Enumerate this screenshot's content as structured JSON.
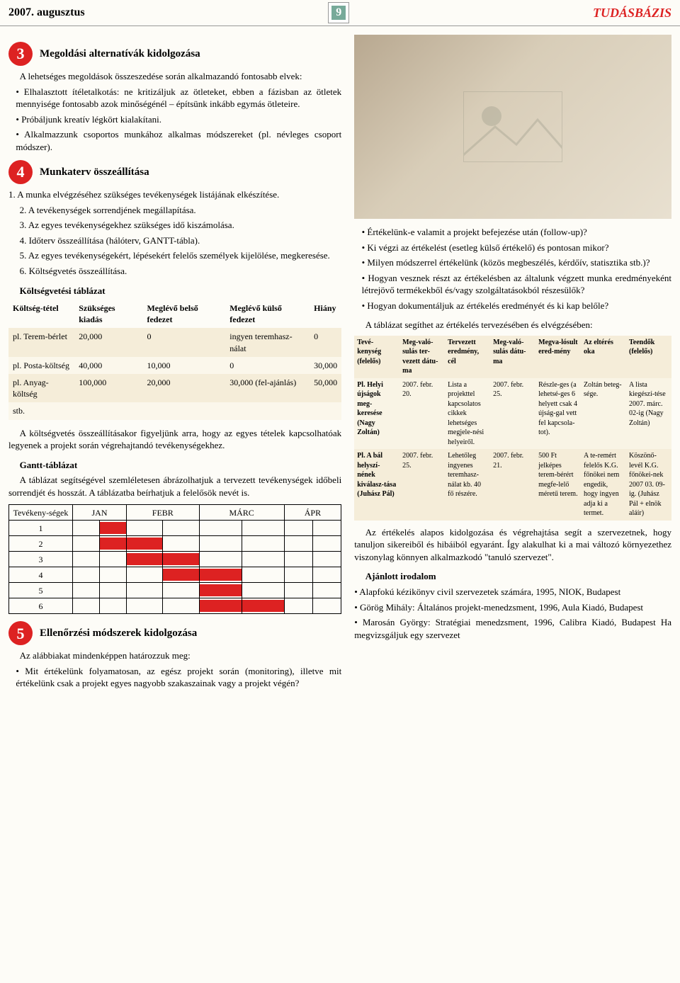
{
  "header": {
    "date": "2007. augusztus",
    "page_number": "9",
    "section_name": "TUDÁSBÁZIS"
  },
  "colors": {
    "accent_red": "#d22d2d",
    "badge_bg": "#d22d2d",
    "cream_row_odd": "#f5edd9",
    "cream_row_even": "#fbf7eb",
    "gantt_bar": "#d22d2d"
  },
  "section3": {
    "num": "3",
    "title": "Megoldási alternatívák kidolgozása",
    "intro": "A lehetséges megoldások összeszedése során alkalmazandó fontosabb elvek:",
    "items": [
      "• Elhalasztott ítéletalkotás: ne kritizáljuk az ötleteket, ebben a fázisban az ötletek mennyisége fontosabb azok minőségénél – építsünk inkább egymás ötleteire.",
      "• Próbáljunk kreatív légkört kialakítani.",
      "• Alkalmazzunk csoportos munkához alkalmas módszereket (pl. névleges csoport módszer)."
    ]
  },
  "section4": {
    "num": "4",
    "title": "Munkaterv összeállítása",
    "items": [
      "1. A munka elvégzéséhez szükséges tevékenységek listájának elkészítése.",
      "2. A tevékenységek sorrendjének megállapítása.",
      "3. Az egyes tevékenységekhez szükséges idő kiszámolása.",
      "4. Időterv összeállítása (hálóterv, GANTT-tábla).",
      "5. Az egyes tevékenységekért, lépésekért felelős személyek kijelölése, megkeresése.",
      "6. Költségvetés összeállítása."
    ],
    "budget_head": "Költségvetési táblázat",
    "budget_caption": "A költségvetés összeállításakor figyeljünk arra, hogy az egyes tételek kapcsolhatóak legyenek a projekt során végrehajtandó tevékenységekhez.",
    "budget_cols": [
      "Költség-tétel",
      "Szükséges kiadás",
      "Meglévő belső fedezet",
      "Meglévő külső fedezet",
      "Hiány"
    ],
    "budget_rows": [
      [
        "pl. Terem-bérlet",
        "20,000",
        "0",
        "ingyen teremhasz-nálat",
        "0"
      ],
      [
        "pl. Posta-költség",
        "40,000",
        "10,000",
        "0",
        "30,000"
      ],
      [
        "pl. Anyag-költség",
        "100,000",
        "20,000",
        "30,000 (fel-ajánlás)",
        "50,000"
      ],
      [
        "stb.",
        "",
        "",
        "",
        ""
      ]
    ],
    "gantt_head": "Gantt-táblázat",
    "gantt_text": "A táblázat segítségével szemléletesen ábrázolhatjuk a tervezett tevékenységek időbeli sorrendjét és hosszát. A táblázatba beírhatjuk a felelősök nevét is.",
    "gantt": {
      "row_label": "Tevékeny-ségek",
      "months": [
        "JAN",
        "FEBR",
        "MÁRC",
        "ÁPR"
      ],
      "cells_per_month": 2,
      "tasks": [
        {
          "n": "1",
          "start": 1,
          "end": 2
        },
        {
          "n": "2",
          "start": 1,
          "end": 3
        },
        {
          "n": "3",
          "start": 2,
          "end": 4
        },
        {
          "n": "4",
          "start": 3,
          "end": 5
        },
        {
          "n": "5",
          "start": 4,
          "end": 5
        },
        {
          "n": "6",
          "start": 4,
          "end": 6
        }
      ]
    }
  },
  "section5": {
    "num": "5",
    "title": "Ellenőrzési módszerek kidolgozása",
    "intro": "Az alábbiakat mindenképpen határozzuk meg:",
    "items_left": [
      "• Mit értékelünk folyamatosan, az egész projekt során (monitoring), illetve mit értékelünk csak a projekt egyes nagyobb szakaszainak vagy a projekt végén?"
    ],
    "items_right": [
      "• Értékelünk-e valamit a projekt befejezése után (follow-up)?",
      "• Ki végzi az értékelést (esetleg külső értékelő) és pontosan mikor?",
      "• Milyen módszerrel értékelünk (közös megbeszélés, kérdőív, statisztika stb.)?",
      "• Hogyan vesznek részt az értékelésben az általunk végzett munka eredményeként létrejövő termékekből és/vagy szolgáltatásokból részesülők?",
      "• Hogyan dokumentáljuk az értékelés eredményét és ki kap belőle?"
    ],
    "eval_intro": "A táblázat segíthet az értékelés tervezésében és elvégzésében:",
    "eval_cols": [
      "Tevé-kenység (felelős)",
      "Meg-való-sulás ter-vezett dátu-ma",
      "Tervezett eredmény, cél",
      "Meg-való-sulás dátu-ma",
      "Megva-lósult ered-mény",
      "Az eltérés oka",
      "Teendők (felelős)"
    ],
    "eval_rows": [
      [
        "Pl. Helyi újságok meg-keresése (Nagy Zoltán)",
        "2007. febr. 20.",
        "Lista a projekttel kapcsolatos cikkek lehetséges megjele-nési helyeiről.",
        "2007. febr. 25.",
        "Részle-ges (a lehetsé-ges 6 helyett csak 4 újság-gal vett fel kapcsola-tot).",
        "Zoltán beteg-sége.",
        "A lista kiegészí-tése 2007. márc. 02-ig (Nagy Zoltán)"
      ],
      [
        "Pl. A bál helyszí-nének kiválasz-tása (Juhász Pál)",
        "2007. febr. 25.",
        "Lehetőleg ingyenes teremhasz-nálat kb. 40 fő részére.",
        "2007. febr. 21.",
        "500 Ft jelképes terem-bérért megfe-lelő méretű terem.",
        "A te-remért felelős K.G. főnökei nem engedik, hogy ingyen adja ki a termet.",
        "Köszönő-levél K.G. főnökei-nek 2007 03. 09-ig. (Juhász Pál + elnök aláír)"
      ]
    ],
    "closing": "Az értékelés alapos kidolgozása és végrehajtása segít a szervezetnek, hogy tanuljon sikereiből és hibáiból egyaránt. Így alakulhat ki a mai változó környezethez viszonylag könnyen alkalmazkodó \"tanuló szervezet\"."
  },
  "biblio": {
    "head": "Ajánlott irodalom",
    "items": [
      "•      Alapfokú kézikönyv civil szervezetek számára, 1995, NIOK, Budapest",
      "•      Görög Mihály: Általános projekt-menedzsment, 1996, Aula Kiadó, Budapest",
      "•      Marosán György: Stratégiai menedzsment, 1996, Calibra Kiadó, Budapest Ha megvizsgáljuk egy szervezet"
    ]
  }
}
